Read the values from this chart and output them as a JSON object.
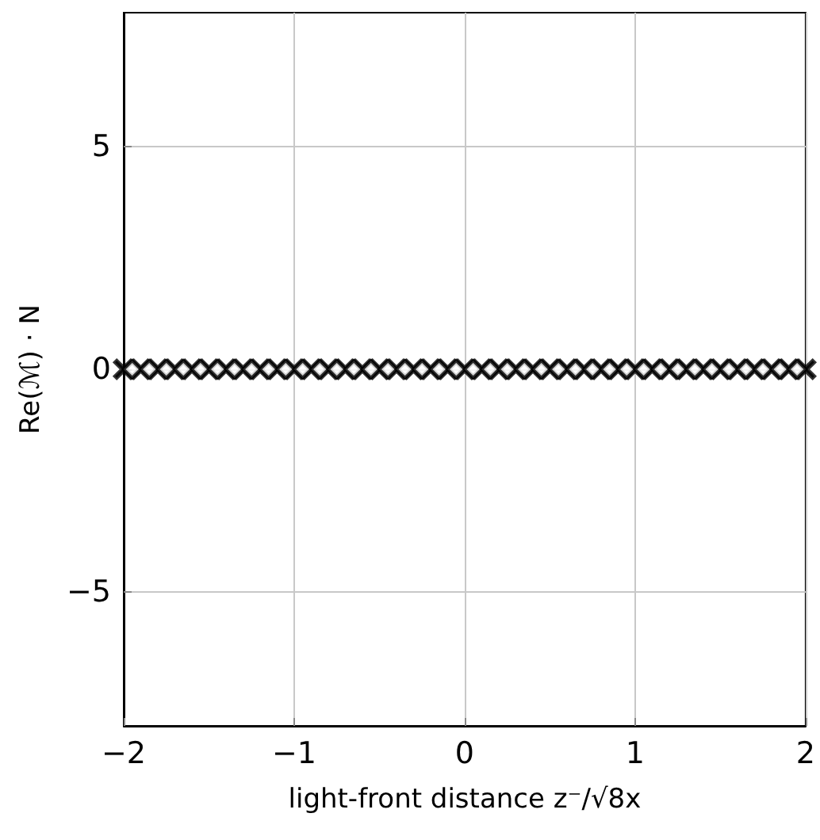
{
  "chart_data": {
    "type": "scatter",
    "xlabel": "light-front distance z⁻/√8x",
    "ylabel": "Re(ℳ) · N",
    "xlim": [
      -2,
      2
    ],
    "xticks": [
      {
        "value": -2,
        "label": "−2"
      },
      {
        "value": -1,
        "label": "−1"
      },
      0,
      1,
      2
    ],
    "ylim": [
      -8,
      8
    ],
    "yticks": [
      {
        "value": -5,
        "label": "−5"
      },
      0,
      5
    ],
    "grid": true,
    "series": [
      {
        "color": "#000000",
        "marker": "cross",
        "x": [
          -2,
          -1.9,
          -1.8,
          -1.7,
          -1.6,
          -1.5,
          -1.4,
          -1.3,
          -1.2,
          -1.1,
          -1,
          -0.9,
          -0.8,
          -0.7,
          -0.6,
          -0.5,
          -0.4,
          -0.3,
          -0.2,
          -0.1,
          0,
          0.1,
          0.2,
          0.3,
          0.4,
          0.5,
          0.6,
          0.7,
          0.8,
          0.9,
          1,
          1.1,
          1.2,
          1.3,
          1.4,
          1.5,
          1.6,
          1.7,
          1.8,
          1.9,
          2
        ],
        "values": [
          0,
          0,
          0,
          0,
          0,
          0,
          0,
          0,
          0,
          0,
          0,
          0,
          0,
          0,
          0,
          0,
          0,
          0,
          0,
          0,
          0,
          0,
          0,
          0,
          0,
          0,
          0,
          0,
          0,
          0,
          0,
          0,
          0,
          0,
          0,
          0,
          0,
          0,
          0,
          0,
          0
        ]
      },
      {
        "color": "#000000",
        "marker": "diamond",
        "x": [
          -1.95,
          -1.85,
          -1.75,
          -1.65,
          -1.55,
          -1.45,
          -1.35,
          -1.25,
          -1.15,
          -1.05,
          -0.95,
          -0.85,
          -0.75,
          -0.65,
          -0.55,
          -0.45,
          -0.35,
          -0.25,
          -0.15,
          -0.05,
          0.05,
          0.15,
          0.25,
          0.35,
          0.45,
          0.55,
          0.65,
          0.75,
          0.85,
          0.95,
          1.05,
          1.15,
          1.25,
          1.35,
          1.45,
          1.55,
          1.65,
          1.75,
          1.85,
          1.95
        ],
        "values": [
          0,
          0,
          0,
          0,
          0,
          0,
          0,
          0,
          0,
          0,
          0,
          0,
          0,
          0,
          0,
          0,
          0,
          0,
          0,
          0,
          0,
          0,
          0,
          0,
          0,
          0,
          0,
          0,
          0,
          0,
          0,
          0,
          0,
          0,
          0,
          0,
          0,
          0,
          0,
          0
        ]
      }
    ]
  }
}
